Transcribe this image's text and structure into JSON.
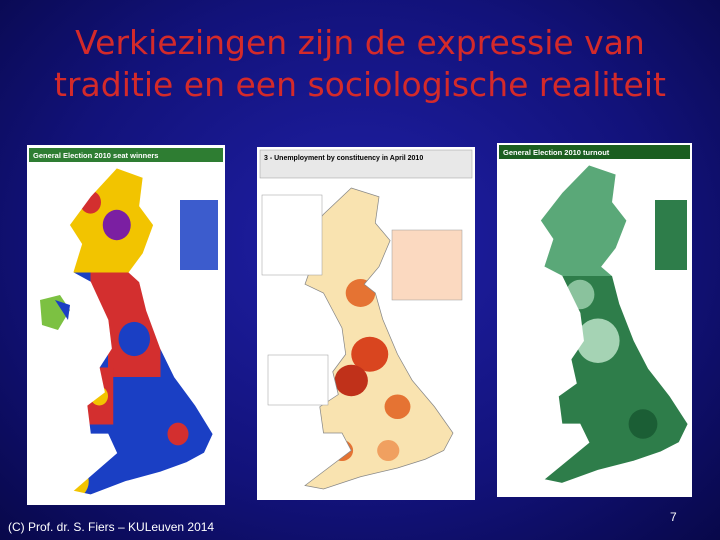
{
  "title": {
    "lines": [
      "Verkiezingen zijn de expressie van",
      "traditie en een sociologische realiteit"
    ]
  },
  "maps": [
    {
      "header": "General Election 2010 seat winners"
    },
    {
      "header": "3 - Unemployment by constituency in April 2010"
    },
    {
      "header": "General Election 2010 turnout"
    }
  ],
  "footer": "(C) Prof. dr. S. Fiers – KULeuven 2014",
  "page_number": "7"
}
